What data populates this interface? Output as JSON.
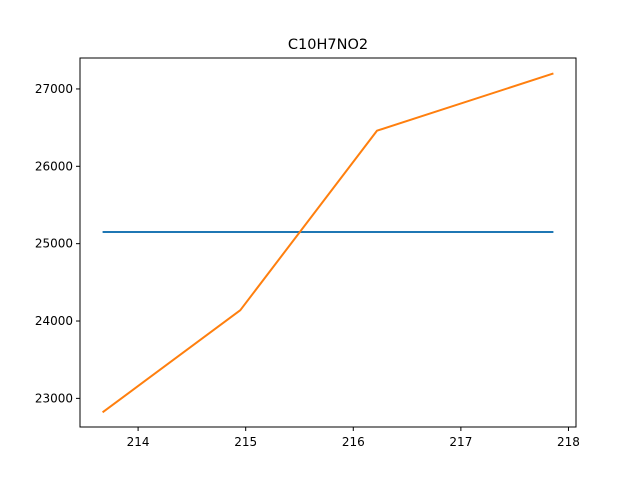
{
  "chart_data": {
    "type": "line",
    "title": "C10H7NO2",
    "xlabel": "",
    "ylabel": "",
    "xlim": [
      213.46,
      218.07
    ],
    "ylim": [
      22630,
      27400
    ],
    "grid": false,
    "x_ticks": [
      214,
      215,
      216,
      217,
      218
    ],
    "y_ticks": [
      23000,
      24000,
      25000,
      26000,
      27000
    ],
    "series": [
      {
        "color": "#1f77b4",
        "x": [
          213.67,
          217.86
        ],
        "y": [
          25150,
          25150
        ]
      },
      {
        "color": "#ff7f0e",
        "x": [
          213.67,
          214.95,
          216.22,
          217.86
        ],
        "y": [
          22820,
          24140,
          26460,
          27200
        ]
      }
    ]
  }
}
